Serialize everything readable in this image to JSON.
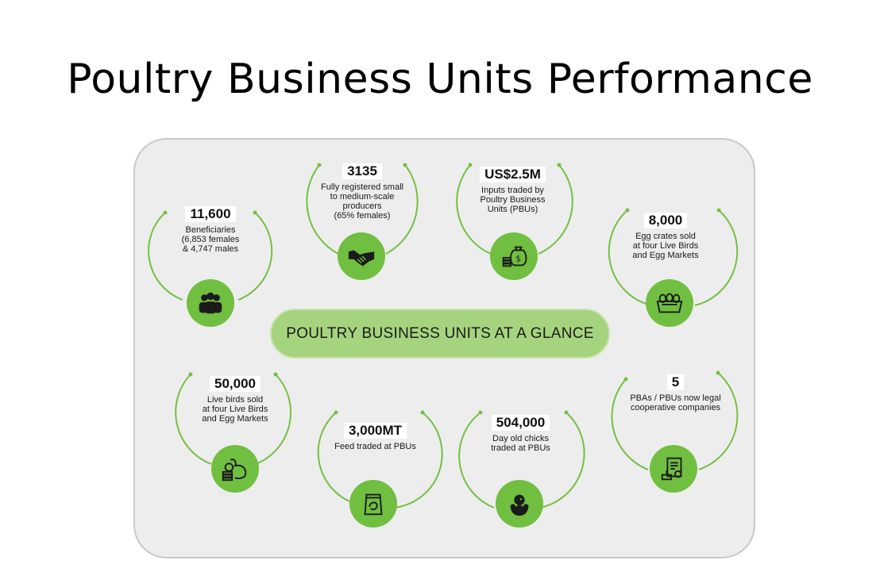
{
  "title": "Poultry Business Units Performance",
  "banner": "POULTRY BUSINESS UNITS AT A GLANCE",
  "accent_color": "#70bf40",
  "stats": [
    {
      "value": "11,600",
      "lines": [
        "Beneficiaries",
        "(6,853 females",
        "& 4,747 males"
      ],
      "icon": "people-icon"
    },
    {
      "value": "3135",
      "lines": [
        "Fully registered small",
        "to medium-scale",
        "producers",
        "(65% females)"
      ],
      "icon": "handshake-icon"
    },
    {
      "value": "US$2.5M",
      "lines": [
        "Inputs traded by",
        "Poultry Business",
        "Units (PBUs)"
      ],
      "icon": "money-bag-icon"
    },
    {
      "value": "8,000",
      "lines": [
        "Egg crates sold",
        "at four Live Birds",
        "and Egg Markets"
      ],
      "icon": "egg-crate-icon"
    },
    {
      "value": "50,000",
      "lines": [
        "Live birds sold",
        "at four Live Birds",
        "and Egg Markets"
      ],
      "icon": "rooster-coins-icon"
    },
    {
      "value": "3,000MT",
      "lines": [
        "Feed traded at PBUs"
      ],
      "icon": "feed-bag-icon"
    },
    {
      "value": "504,000",
      "lines": [
        "Day old chicks",
        "traded at PBUs"
      ],
      "icon": "chick-icon"
    },
    {
      "value": "5",
      "lines": [
        "PBAs / PBUs now legal",
        "cooperative companies"
      ],
      "icon": "certificate-icon"
    }
  ]
}
